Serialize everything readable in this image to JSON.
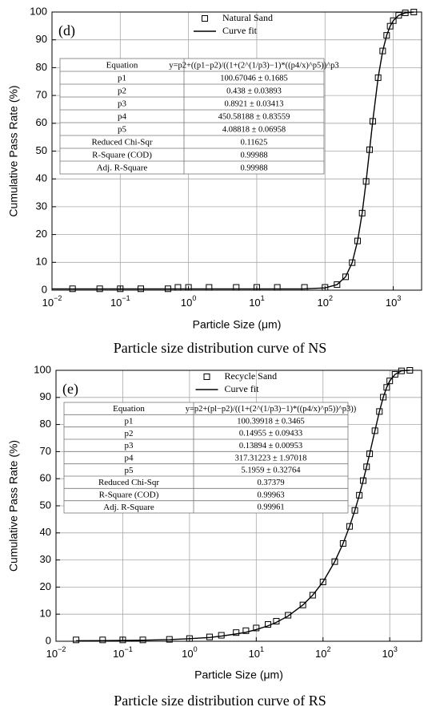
{
  "chart_data": [
    {
      "type": "scatter",
      "panel_label": "(d)",
      "xlabel": "Particle Size (μm)",
      "ylabel": "Cumulative Pass Rate (%)",
      "caption": "Particle size distribution curve of NS",
      "log_x": true,
      "grid": true,
      "legend": "upper center",
      "xlim": [
        0.01,
        2600
      ],
      "ylim": [
        0,
        100
      ],
      "xticks": [
        {
          "value": 0.01,
          "label": "10",
          "sup": "−2"
        },
        {
          "value": 0.1,
          "label": "10",
          "sup": "−1"
        },
        {
          "value": 1,
          "label": "10",
          "sup": "0"
        },
        {
          "value": 10,
          "label": "10",
          "sup": "1"
        },
        {
          "value": 100,
          "label": "10",
          "sup": "2"
        },
        {
          "value": 1000,
          "label": "10",
          "sup": "3"
        }
      ],
      "yticks": [
        0,
        10,
        20,
        30,
        40,
        50,
        60,
        70,
        80,
        90,
        100
      ],
      "series": [
        {
          "name": "Natural Sand",
          "color": "#000000",
          "marker": "square",
          "x": [
            0.02,
            0.05,
            0.1,
            0.2,
            0.5,
            0.7,
            1,
            2,
            5,
            10,
            20,
            50,
            100,
            150,
            200,
            250,
            300,
            350,
            400,
            450,
            500,
            600,
            700,
            800,
            900,
            1000,
            1200,
            1500,
            2000
          ],
          "values": [
            0.5,
            0.5,
            0.5,
            0.5,
            0.5,
            1.0,
            1.0,
            1.0,
            1.0,
            1.0,
            1.0,
            1.0,
            1.0,
            2.0,
            4.8,
            9.9,
            17.7,
            27.7,
            39.1,
            50.5,
            60.7,
            76.4,
            86.0,
            91.6,
            94.9,
            96.9,
            98.8,
            99.7,
            100.0
          ]
        },
        {
          "name": "Curve fit",
          "color": "#000000",
          "line": true,
          "x": [
            0.01,
            0.1,
            1,
            10,
            20,
            50,
            100,
            150,
            200,
            250,
            300,
            350,
            400,
            450,
            500,
            600,
            700,
            800,
            900,
            1000,
            1200,
            1500,
            2000
          ],
          "values": [
            0.44,
            0.44,
            0.44,
            0.44,
            0.44,
            0.47,
            0.8,
            2.0,
            4.8,
            9.9,
            17.7,
            27.7,
            39.1,
            50.5,
            60.7,
            76.4,
            86.0,
            91.6,
            94.9,
            96.9,
            98.8,
            99.7,
            100.0
          ]
        }
      ],
      "table": {
        "rows": [
          [
            "Equation",
            "y=p2+((p1−p2)/((1+(2^(1/p3)−1)*((p4/x)^p5))^p3"
          ],
          [
            "p1",
            "100.67046 ± 0.1685"
          ],
          [
            "p2",
            "0.438 ± 0.03893"
          ],
          [
            "p3",
            "0.8921 ± 0.03413"
          ],
          [
            "p4",
            "450.58188 ± 0.83559"
          ],
          [
            "p5",
            "4.08818 ± 0.06958"
          ],
          [
            "Reduced Chi-Sqr",
            "0.11625"
          ],
          [
            "R-Square (COD)",
            "0.99988"
          ],
          [
            "Adj. R-Square",
            "0.99988"
          ]
        ]
      }
    },
    {
      "type": "scatter",
      "panel_label": "(e)",
      "xlabel": "Particle Size (μm)",
      "ylabel": "Cumulative Pass Rate (%)",
      "caption": "Particle size distribution curve of RS",
      "log_x": true,
      "grid": true,
      "legend": "upper center",
      "xlim": [
        0.01,
        3000
      ],
      "ylim": [
        0,
        100
      ],
      "xticks": [
        {
          "value": 0.01,
          "label": "10",
          "sup": "−2"
        },
        {
          "value": 0.1,
          "label": "10",
          "sup": "−1"
        },
        {
          "value": 1,
          "label": "10",
          "sup": "0"
        },
        {
          "value": 10,
          "label": "10",
          "sup": "1"
        },
        {
          "value": 100,
          "label": "10",
          "sup": "2"
        },
        {
          "value": 1000,
          "label": "10",
          "sup": "3"
        }
      ],
      "yticks": [
        0,
        10,
        20,
        30,
        40,
        50,
        60,
        70,
        80,
        90,
        100
      ],
      "series": [
        {
          "name": "Recycle Sand",
          "color": "#000000",
          "marker": "square",
          "x": [
            0.02,
            0.05,
            0.1,
            0.2,
            0.5,
            1,
            2,
            3,
            5,
            7,
            10,
            15,
            20,
            30,
            50,
            70,
            100,
            150,
            200,
            250,
            300,
            350,
            400,
            450,
            500,
            600,
            700,
            800,
            900,
            1000,
            1200,
            1500,
            2000
          ],
          "values": [
            0.5,
            0.5,
            0.5,
            0.5,
            0.7,
            1.0,
            1.6,
            2.2,
            3.2,
            3.9,
            4.9,
            6.2,
            7.4,
            9.6,
            13.4,
            17.0,
            21.9,
            29.4,
            36.1,
            42.4,
            48.3,
            53.9,
            59.3,
            64.4,
            69.2,
            77.7,
            84.8,
            90.1,
            93.7,
            96.1,
            98.5,
            99.8,
            100.0
          ]
        },
        {
          "name": "Curve fit",
          "color": "#000000",
          "line": true,
          "x": [
            0.02,
            0.05,
            0.1,
            0.2,
            0.5,
            1,
            2,
            3,
            5,
            7,
            10,
            15,
            20,
            30,
            50,
            70,
            100,
            150,
            200,
            250,
            300,
            350,
            400,
            450,
            500,
            600,
            700,
            800,
            900,
            1000,
            1200,
            1500,
            2000
          ],
          "values": [
            0.2,
            0.25,
            0.3,
            0.4,
            0.6,
            0.93,
            1.4,
            1.9,
            2.7,
            3.3,
            4.3,
            5.7,
            7.0,
            9.3,
            13.4,
            17.0,
            21.9,
            29.4,
            36.1,
            42.4,
            48.3,
            53.9,
            59.3,
            64.4,
            69.2,
            77.7,
            84.8,
            90.1,
            93.7,
            96.1,
            98.5,
            99.8,
            100.0
          ]
        }
      ],
      "table": {
        "rows": [
          [
            "Equation",
            "y=p2+(pl−p2)/((1+(2^(1/p3)−1)*((p4/x)^p5))^p3))"
          ],
          [
            "p1",
            "100.39918 ± 0.3465"
          ],
          [
            "p2",
            "0.14955 ± 0.09433"
          ],
          [
            "p3",
            "0.13894 ± 0.00953"
          ],
          [
            "p4",
            "317.31223 ± 1.97018"
          ],
          [
            "p5",
            "5.1959 ± 0.32764"
          ],
          [
            "Reduced Chi-Sqr",
            "0.37379"
          ],
          [
            "R-Square (COD)",
            "0.99963"
          ],
          [
            "Adj. R-Square",
            "0.99961"
          ]
        ]
      }
    }
  ]
}
